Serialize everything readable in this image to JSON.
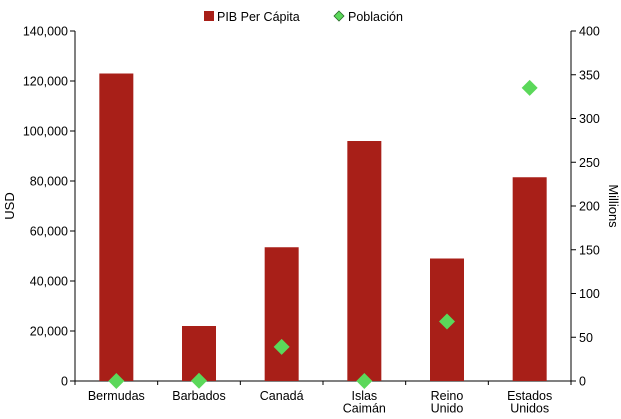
{
  "chart_data": {
    "type": "bar",
    "categories": [
      [
        "Bermudas"
      ],
      [
        "Barbados"
      ],
      [
        "Canadá"
      ],
      [
        "Islas",
        "Caimán"
      ],
      [
        "Reino",
        "Unido"
      ],
      [
        "Estados",
        "Unidos"
      ]
    ],
    "series": [
      {
        "name": "PIB Per Cápita",
        "type": "bar",
        "axis": "left",
        "color": "#A81F18",
        "values": [
          123000,
          22000,
          53500,
          96000,
          49000,
          81500
        ]
      },
      {
        "name": "Población",
        "type": "scatter",
        "marker": "diamond",
        "axis": "right",
        "color": "#5BD85A",
        "values": [
          0.06,
          0.28,
          39,
          0.07,
          68,
          335
        ]
      }
    ],
    "ylabel_left": "USD",
    "ylabel_right": "Millions",
    "ylim_left": [
      0,
      140000
    ],
    "ylim_right": [
      0,
      400
    ],
    "yticks_left": [
      "0",
      "20,000",
      "40,000",
      "60,000",
      "80,000",
      "100,000",
      "120,000",
      "140,000"
    ],
    "yticks_right": [
      "0",
      "50",
      "100",
      "150",
      "200",
      "250",
      "300",
      "350",
      "400"
    ],
    "legend_position": "top-center",
    "grid": false
  }
}
